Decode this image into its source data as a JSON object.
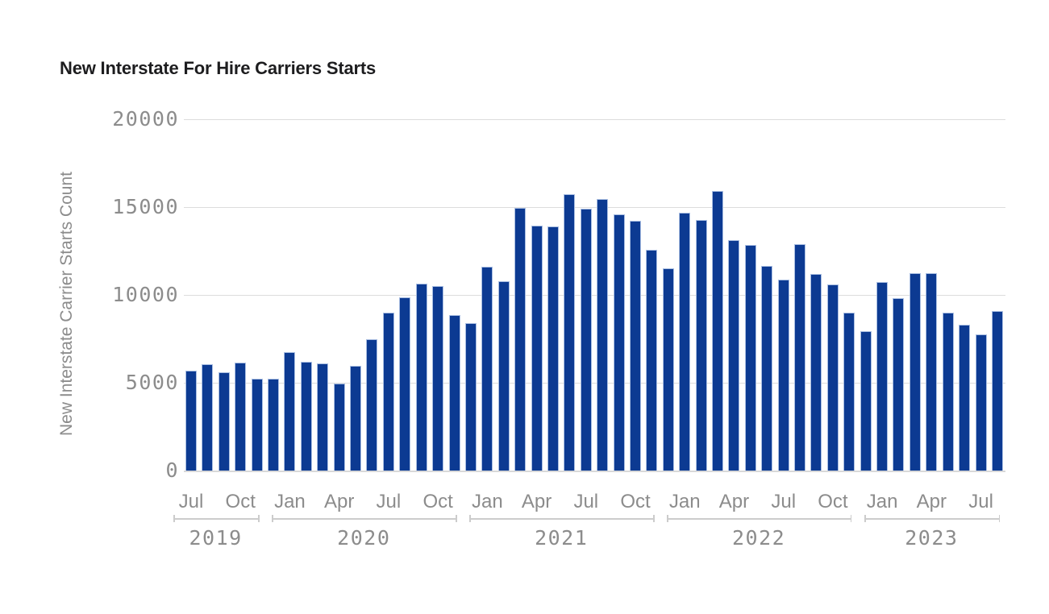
{
  "title": "New Interstate For Hire Carriers Starts",
  "chart_data": {
    "type": "bar",
    "title": "New Interstate For Hire Carriers Starts",
    "xlabel": "",
    "ylabel": "New Interstate Carrier Starts Count",
    "ylim": [
      0,
      20000
    ],
    "yticks": [
      0,
      5000,
      10000,
      15000,
      20000
    ],
    "ytick_labels": [
      "0",
      "5000",
      "10000",
      "15000",
      "20000"
    ],
    "grid": true,
    "legend": false,
    "labeled_months": [
      "Jan",
      "Apr",
      "Jul",
      "Oct"
    ],
    "categories": [
      "Jul 2019",
      "Aug 2019",
      "Sep 2019",
      "Oct 2019",
      "Nov 2019",
      "Dec 2019",
      "Jan 2020",
      "Feb 2020",
      "Mar 2020",
      "Apr 2020",
      "May 2020",
      "Jun 2020",
      "Jul 2020",
      "Aug 2020",
      "Sep 2020",
      "Oct 2020",
      "Nov 2020",
      "Dec 2020",
      "Jan 2021",
      "Feb 2021",
      "Mar 2021",
      "Apr 2021",
      "May 2021",
      "Jun 2021",
      "Jul 2021",
      "Aug 2021",
      "Sep 2021",
      "Oct 2021",
      "Nov 2021",
      "Dec 2021",
      "Jan 2022",
      "Feb 2022",
      "Mar 2022",
      "Apr 2022",
      "May 2022",
      "Jun 2022",
      "Jul 2022",
      "Aug 2022",
      "Sep 2022",
      "Oct 2022",
      "Nov 2022",
      "Dec 2022",
      "Jan 2023",
      "Feb 2023",
      "Mar 2023",
      "Apr 2023",
      "May 2023",
      "Jun 2023",
      "Jul 2023",
      "Aug 2023"
    ],
    "values": [
      5700,
      6050,
      5600,
      6150,
      5250,
      5250,
      6750,
      6200,
      6100,
      4950,
      5950,
      7500,
      9000,
      9850,
      10650,
      10500,
      8850,
      8400,
      11600,
      10800,
      14950,
      13950,
      13900,
      15750,
      14900,
      15450,
      14600,
      14200,
      12550,
      11500,
      14700,
      14250,
      15900,
      13100,
      12850,
      11650,
      10850,
      12900,
      11200,
      10600,
      9000,
      7950,
      10750,
      9800,
      11250,
      11250,
      9000,
      8300,
      7750,
      9100
    ],
    "year_groups": [
      {
        "label": "2019",
        "count": 6
      },
      {
        "label": "2020",
        "count": 12
      },
      {
        "label": "2021",
        "count": 12
      },
      {
        "label": "2022",
        "count": 12
      },
      {
        "label": "2023",
        "count": 8
      }
    ],
    "colors": {
      "bar": "#0c3a92",
      "bar_edge": "#a9bee2",
      "grid": "#dcdcdc",
      "axis_line": "#d9d9d9",
      "labels": "#8c8c8c",
      "title": "#1d1d1f",
      "background": "#ffffff"
    }
  }
}
